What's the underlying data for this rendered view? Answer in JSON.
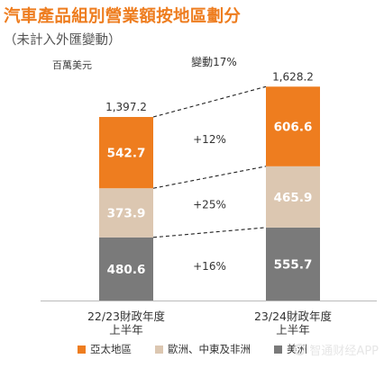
{
  "title": "汽車產品組別營業額按地區劃分",
  "subtitle": "（未計入外匯變動）",
  "unit_label": "百萬美元",
  "colors": {
    "title": "#ee7d1f",
    "asia_pacific": "#ee7d1f",
    "europe_middle_east_africa": "#dcc7b1",
    "americas": "#7a7a7a",
    "bar_label": "#ffffff",
    "connector": "#222222"
  },
  "watermark": "智通财经APP",
  "chart_data": {
    "type": "bar",
    "stacked": true,
    "categories": [
      "22/23財政年度\n上半年",
      "23/24財政年度\n上半年"
    ],
    "series": [
      {
        "name": "美洲",
        "values": [
          480.6,
          555.7
        ],
        "labels": [
          "480.6",
          "555.7"
        ]
      },
      {
        "name": "歐洲、中東及非洲",
        "values": [
          373.9,
          465.9
        ],
        "labels": [
          "373.9",
          "465.9"
        ]
      },
      {
        "name": "亞太地區",
        "values": [
          542.7,
          606.6
        ],
        "labels": [
          "542.7",
          "606.6"
        ]
      }
    ],
    "totals": [
      "1,397.2",
      "1,628.2"
    ],
    "total_change": "變動17%",
    "segment_changes": {
      "americas": "+16%",
      "europe_middle_east_africa": "+25%",
      "asia_pacific": "+12%"
    },
    "legend": [
      "亞太地區",
      "歐洲、中東及非洲",
      "美洲"
    ],
    "legend_position": "bottom",
    "grid": false
  }
}
